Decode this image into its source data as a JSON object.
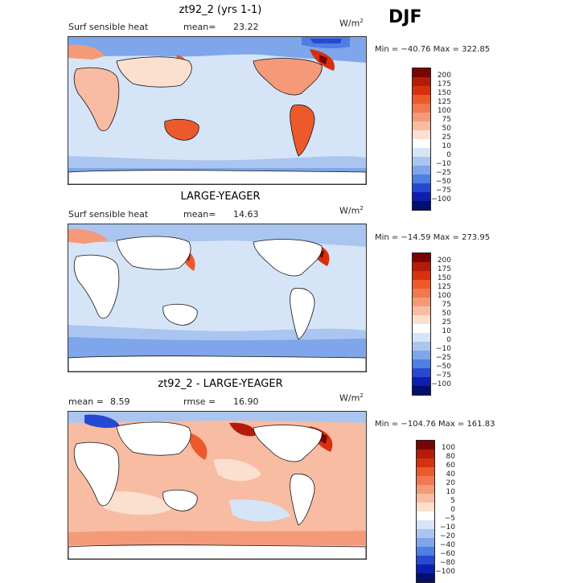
{
  "season": "DJF",
  "units": "W/m",
  "units_sup": "2",
  "panels": [
    {
      "title": "zt92_2 (yrs 1-1)",
      "left_label": "Surf sensible heat",
      "stat1_label": "mean=",
      "stat1_value": "23.22",
      "stat2_label": "",
      "stat2_value": "",
      "minmax": "Min = −40.76  Max = 322.85",
      "colorbar": {
        "levels": [
          "200",
          "175",
          "150",
          "125",
          "100",
          "75",
          "50",
          "25",
          "10",
          "0",
          "−10",
          "−25",
          "−50",
          "−75",
          "−100"
        ],
        "colors": [
          "#7a0403",
          "#b51b0b",
          "#d6300f",
          "#ec5a2c",
          "#f2784f",
          "#f59a78",
          "#f8bca2",
          "#fbe0cf",
          "#ffffff",
          "#d6e4f7",
          "#aac6f0",
          "#7fa6ea",
          "#4e7fe3",
          "#2749d1",
          "#0d1fae",
          "#020f6e"
        ]
      }
    },
    {
      "title": "LARGE-YEAGER",
      "left_label": "Surf sensible heat",
      "stat1_label": "mean=",
      "stat1_value": "14.63",
      "stat2_label": "",
      "stat2_value": "",
      "minmax": "Min = −14.59  Max = 273.95",
      "colorbar": {
        "levels": [
          "200",
          "175",
          "150",
          "125",
          "100",
          "75",
          "50",
          "25",
          "10",
          "0",
          "−10",
          "−25",
          "−50",
          "−75",
          "−100"
        ],
        "colors": [
          "#7a0403",
          "#b51b0b",
          "#d6300f",
          "#ec5a2c",
          "#f2784f",
          "#f59a78",
          "#f8bca2",
          "#fbe0cf",
          "#ffffff",
          "#d6e4f7",
          "#aac6f0",
          "#7fa6ea",
          "#4e7fe3",
          "#2749d1",
          "#0d1fae",
          "#020f6e"
        ]
      }
    },
    {
      "title": "zt92_2 - LARGE-YEAGER",
      "left_label": "",
      "stat1_label": "mean =",
      "stat1_value": "8.59",
      "stat2_label": "rmse =",
      "stat2_value": "16.90",
      "minmax": "Min = −104.76  Max = 161.83",
      "colorbar": {
        "levels": [
          "100",
          "80",
          "60",
          "40",
          "20",
          "10",
          "5",
          "0",
          "−5",
          "−10",
          "−20",
          "−40",
          "−60",
          "−80",
          "−100"
        ],
        "colors": [
          "#7a0403",
          "#b51b0b",
          "#d6300f",
          "#ec5a2c",
          "#f2784f",
          "#f59a78",
          "#f8bca2",
          "#fbe0cf",
          "#ffffff",
          "#d6e4f7",
          "#aac6f0",
          "#7fa6ea",
          "#4e7fe3",
          "#2749d1",
          "#0d1fae",
          "#020f6e"
        ]
      }
    }
  ]
}
